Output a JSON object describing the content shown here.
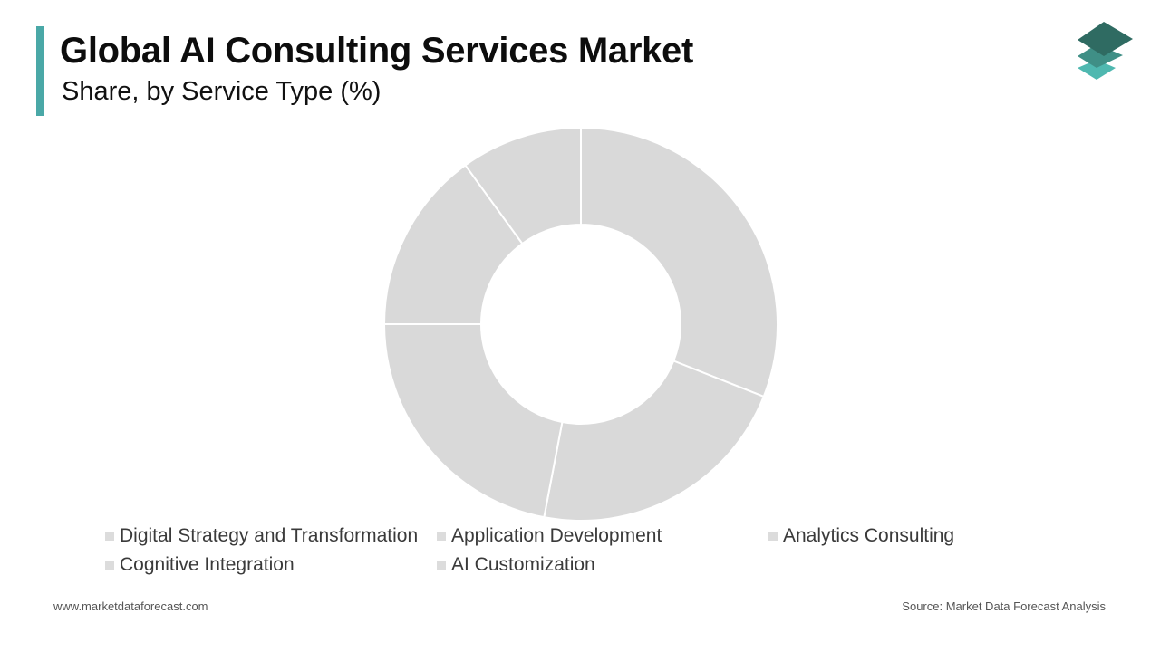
{
  "header": {
    "title": "Global AI Consulting Services Market",
    "subtitle": "Share, by Service Type (%)"
  },
  "footer": {
    "website": "www.marketdataforecast.com",
    "source": "Source: Market Data Forecast Analysis"
  },
  "logo": {
    "icon": "stacked-layers-icon",
    "colors": [
      "#2f6b62",
      "#3f8f86",
      "#4fb8b0"
    ]
  },
  "colors": {
    "accent": "#4aa8a7",
    "slice": "#d9d9d9",
    "slice_border": "#ffffff",
    "legend_swatch": "#dcdcdc"
  },
  "chart_data": {
    "type": "pie",
    "donut": true,
    "title": "Global AI Consulting Services Market",
    "subtitle": "Share, by Service Type (%)",
    "start_angle_deg": 0,
    "direction": "clockwise",
    "legend_position": "bottom",
    "categories": [
      "Digital Strategy and Transformation",
      "Application Development",
      "Analytics Consulting",
      "Cognitive Integration",
      "AI Customization"
    ],
    "values": [
      31,
      22,
      22,
      15,
      10
    ]
  }
}
